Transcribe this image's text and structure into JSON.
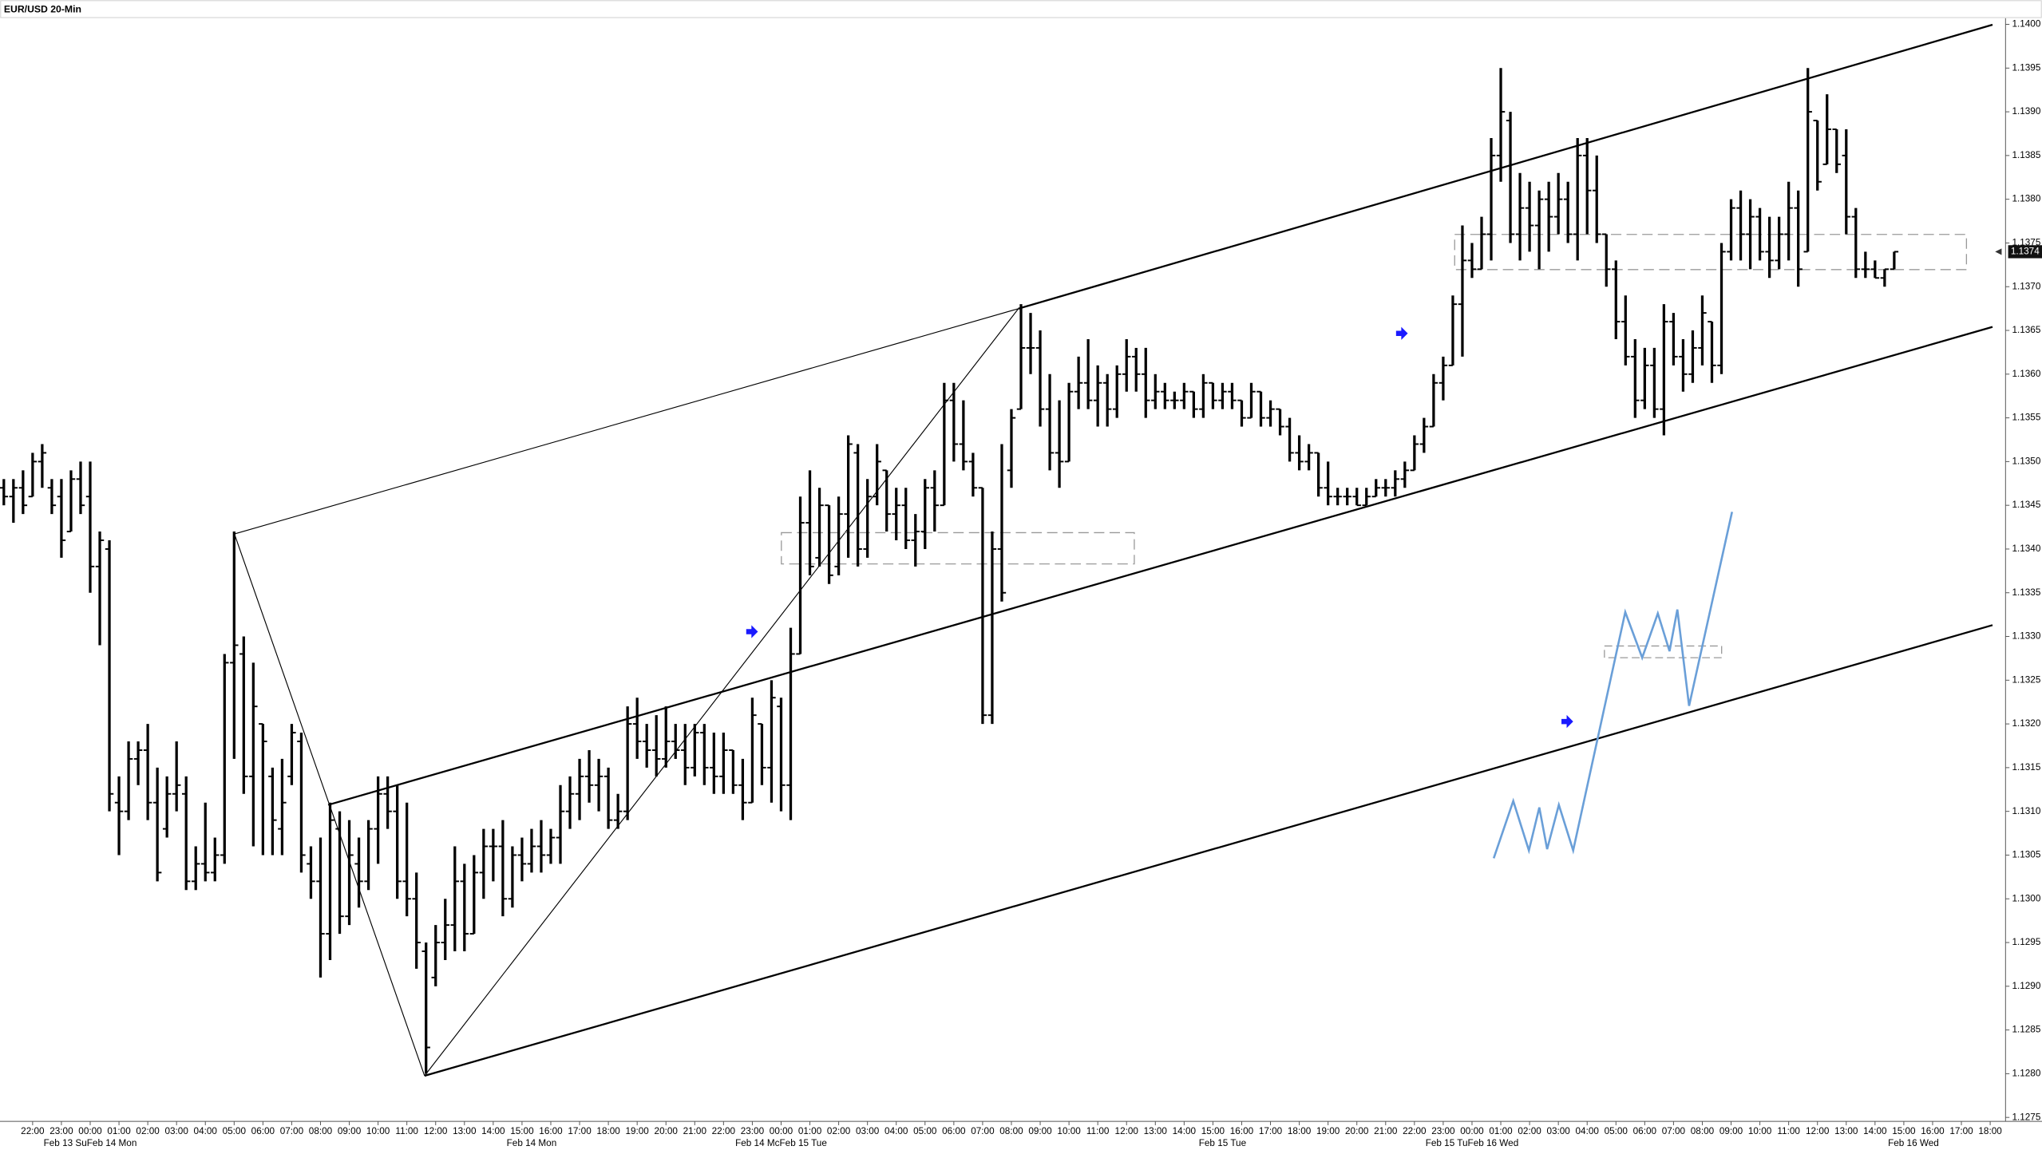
{
  "chart_data": {
    "type": "ohlc",
    "title": "EUR/USD 20-Min",
    "color": "#000000",
    "last_price": 1.1374,
    "ylim": [
      1.12747,
      1.14007
    ],
    "yticks": [
      1.1275,
      {
        "value": 1.128,
        "label": "1.1280"
      },
      1.1285,
      {
        "value": 1.129,
        "label": "1.1290"
      },
      1.1295,
      {
        "value": 1.13,
        "label": "1.1300"
      },
      1.1305,
      {
        "value": 1.131,
        "label": "1.1310"
      },
      1.1315,
      {
        "value": 1.132,
        "label": "1.1320"
      },
      1.1325,
      {
        "value": 1.133,
        "label": "1.1330"
      },
      1.1335,
      {
        "value": 1.134,
        "label": "1.1340"
      },
      1.1345,
      {
        "value": 1.135,
        "label": "1.1350"
      },
      1.1355,
      {
        "value": 1.136,
        "label": "1.1360"
      },
      1.1365,
      {
        "value": 1.137,
        "label": "1.1370"
      },
      1.1375,
      {
        "value": 1.138,
        "label": "1.1380"
      },
      1.1385,
      {
        "value": 1.139,
        "label": "1.1390"
      },
      1.1395,
      {
        "value": 1.14,
        "label": "1.1400"
      }
    ],
    "xlim": [
      -0.4,
      208.6
    ],
    "xticks": [
      {
        "value": 3,
        "label": "22:00"
      },
      {
        "value": 6,
        "label": "23:00"
      },
      {
        "value": 9,
        "label": "00:00"
      },
      {
        "value": 12,
        "label": "01:00"
      },
      {
        "value": 15,
        "label": "02:00"
      },
      {
        "value": 18,
        "label": "03:00"
      },
      {
        "value": 21,
        "label": "04:00"
      },
      {
        "value": 24,
        "label": "05:00"
      },
      {
        "value": 27,
        "label": "06:00"
      },
      {
        "value": 30,
        "label": "07:00"
      },
      {
        "value": 33,
        "label": "08:00"
      },
      {
        "value": 36,
        "label": "09:00"
      },
      {
        "value": 39,
        "label": "10:00"
      },
      {
        "value": 42,
        "label": "11:00"
      },
      {
        "value": 45,
        "label": "12:00"
      },
      {
        "value": 48,
        "label": "13:00"
      },
      {
        "value": 51,
        "label": "14:00"
      },
      {
        "value": 54,
        "label": "15:00"
      },
      {
        "value": 57,
        "label": "16:00"
      },
      {
        "value": 60,
        "label": "17:00"
      },
      {
        "value": 63,
        "label": "18:00"
      },
      {
        "value": 66,
        "label": "19:00"
      },
      {
        "value": 69,
        "label": "20:00"
      },
      {
        "value": 72,
        "label": "21:00"
      },
      {
        "value": 75,
        "label": "22:00"
      },
      {
        "value": 78,
        "label": "23:00"
      },
      {
        "value": 81,
        "label": "00:00"
      },
      {
        "value": 84,
        "label": "01:00"
      },
      {
        "value": 87,
        "label": "02:00"
      },
      {
        "value": 90,
        "label": "03:00"
      },
      {
        "value": 93,
        "label": "04:00"
      },
      {
        "value": 96,
        "label": "05:00"
      },
      {
        "value": 99,
        "label": "06:00"
      },
      {
        "value": 102,
        "label": "07:00"
      },
      {
        "value": 105,
        "label": "08:00"
      },
      {
        "value": 108,
        "label": "09:00"
      },
      {
        "value": 111,
        "label": "10:00"
      },
      {
        "value": 114,
        "label": "11:00"
      },
      {
        "value": 117,
        "label": "12:00"
      },
      {
        "value": 120,
        "label": "13:00"
      },
      {
        "value": 123,
        "label": "14:00"
      },
      {
        "value": 126,
        "label": "15:00"
      },
      {
        "value": 129,
        "label": "16:00"
      },
      {
        "value": 132,
        "label": "17:00"
      },
      {
        "value": 135,
        "label": "18:00"
      },
      {
        "value": 138,
        "label": "19:00"
      },
      {
        "value": 141,
        "label": "20:00"
      },
      {
        "value": 144,
        "label": "21:00"
      },
      {
        "value": 147,
        "label": "22:00"
      },
      {
        "value": 150,
        "label": "23:00"
      },
      {
        "value": 153,
        "label": "00:00"
      },
      {
        "value": 156,
        "label": "01:00"
      },
      {
        "value": 159,
        "label": "02:00"
      },
      {
        "value": 162,
        "label": "03:00"
      },
      {
        "value": 165,
        "label": "04:00"
      },
      {
        "value": 168,
        "label": "05:00"
      },
      {
        "value": 171,
        "label": "06:00"
      },
      {
        "value": 174,
        "label": "07:00"
      },
      {
        "value": 177,
        "label": "08:00"
      },
      {
        "value": 180,
        "label": "09:00"
      },
      {
        "value": 183,
        "label": "10:00"
      },
      {
        "value": 186,
        "label": "11:00"
      },
      {
        "value": 189,
        "label": "12:00"
      },
      {
        "value": 192,
        "label": "13:00"
      },
      {
        "value": 195,
        "label": "14:00"
      },
      {
        "value": 198,
        "label": "15:00"
      },
      {
        "value": 201,
        "label": "16:00"
      },
      {
        "value": 204,
        "label": "17:00"
      },
      {
        "value": 207,
        "label": "18:00"
      }
    ],
    "date_labels": [
      {
        "value": 9,
        "label": "Feb 13 SuFeb 14 Mon"
      },
      {
        "value": 55,
        "label": "Feb 14 Mon"
      },
      {
        "value": 81,
        "label": "Feb 14 McFeb 15 Tue"
      },
      {
        "value": 127,
        "label": "Feb 15 Tue"
      },
      {
        "value": 153,
        "label": "Feb 15 TuFeb 16 Wed"
      },
      {
        "value": 199,
        "label": "Feb 16 Wed"
      }
    ],
    "open": [
      1.1347,
      1.1346,
      1.1347,
      1.1346,
      1.135,
      1.1347,
      1.1346,
      1.1342,
      1.1348,
      1.1346,
      1.1338,
      1.134,
      1.1311,
      1.131,
      1.1316,
      1.1317,
      1.1311,
      1.1308,
      1.1312,
      1.1312,
      1.1302,
      1.1304,
      1.1303,
      1.1305,
      1.1327,
      1.1328,
      1.1314,
      1.132,
      1.1314,
      1.1308,
      1.1314,
      1.1318,
      1.1304,
      1.1302,
      1.1296,
      1.1308,
      1.1298,
      1.1304,
      1.1302,
      1.1308,
      1.1312,
      1.131,
      1.1302,
      1.13,
      1.1294,
      1.1291,
      1.1295,
      1.1297,
      1.1302,
      1.1296,
      1.1303,
      1.1306,
      1.1306,
      1.13,
      1.1305,
      1.1304,
      1.1306,
      1.1305,
      1.1307,
      1.131,
      1.1312,
      1.1314,
      1.1313,
      1.1314,
      1.1309,
      1.131,
      1.132,
      1.1318,
      1.1317,
      1.1316,
      1.1318,
      1.1317,
      1.1315,
      1.1319,
      1.1315,
      1.1314,
      1.1317,
      1.1313,
      1.1311,
      1.132,
      1.1315,
      1.1322,
      1.1313,
      1.1328,
      1.1343,
      1.1339,
      1.1345,
      1.1338,
      1.1344,
      1.1351,
      1.134,
      1.1346,
      1.1349,
      1.1344,
      1.1345,
      1.1341,
      1.1342,
      1.1347,
      1.1345,
      1.1357,
      1.1352,
      1.135,
      1.1347,
      1.1321,
      1.134,
      1.1349,
      1.1356,
      1.1363,
      1.1363,
      1.1356,
      1.1351,
      1.135,
      1.1358,
      1.1359,
      1.1357,
      1.1359,
      1.1356,
      1.136,
      1.1362,
      1.136,
      1.1357,
      1.1358,
      1.1357,
      1.1357,
      1.1358,
      1.1356,
      1.1359,
      1.1357,
      1.1358,
      1.1357,
      1.1355,
      1.1358,
      1.1355,
      1.1356,
      1.1354,
      1.1351,
      1.135,
      1.1351,
      1.1347,
      1.1346,
      1.1346,
      1.1346,
      1.1345,
      1.1346,
      1.1347,
      1.1347,
      1.1348,
      1.1349,
      1.1352,
      1.1354,
      1.1359,
      1.1361,
      1.1368,
      1.1373,
      1.1372,
      1.1376,
      1.1385,
      1.1389,
      1.1376,
      1.1379,
      1.1377,
      1.138,
      1.1378,
      1.138,
      1.1376,
      1.1385,
      1.1381,
      1.1376,
      1.1372,
      1.1366,
      1.1362,
      1.1357,
      1.1361,
      1.1356,
      1.1366,
      1.1362,
      1.136,
      1.1363,
      1.1366,
      1.1361,
      1.1374,
      1.1379,
      1.1376,
      1.1378,
      1.1374,
      1.1373,
      1.1376,
      1.1379,
      1.1374,
      1.1389,
      1.1384,
      1.1388,
      1.1385,
      1.1378,
      1.1372,
      1.1372,
      1.1371,
      1.1372
    ],
    "high": [
      1.1348,
      1.1348,
      1.1349,
      1.1351,
      1.1352,
      1.1348,
      1.1348,
      1.1349,
      1.135,
      1.135,
      1.1342,
      1.1341,
      1.1314,
      1.1318,
      1.1318,
      1.132,
      1.1315,
      1.1314,
      1.1318,
      1.1314,
      1.1306,
      1.1311,
      1.1307,
      1.1328,
      1.1342,
      1.133,
      1.1327,
      1.132,
      1.1315,
      1.1316,
      1.132,
      1.1319,
      1.1306,
      1.1307,
      1.1311,
      1.131,
      1.1309,
      1.1307,
      1.1309,
      1.1314,
      1.1314,
      1.1313,
      1.1311,
      1.1303,
      1.1295,
      1.1297,
      1.13,
      1.1306,
      1.1304,
      1.1305,
      1.1308,
      1.1308,
      1.1309,
      1.1306,
      1.1307,
      1.1308,
      1.1309,
      1.1308,
      1.1313,
      1.1314,
      1.1316,
      1.1317,
      1.1316,
      1.1315,
      1.1312,
      1.1322,
      1.1323,
      1.132,
      1.1321,
      1.1322,
      1.132,
      1.132,
      1.132,
      1.132,
      1.1319,
      1.1319,
      1.1317,
      1.1316,
      1.1323,
      1.132,
      1.1325,
      1.1323,
      1.1331,
      1.1346,
      1.1349,
      1.1347,
      1.1345,
      1.1346,
      1.1353,
      1.1352,
      1.1348,
      1.1352,
      1.1349,
      1.1347,
      1.1347,
      1.1344,
      1.1348,
      1.1349,
      1.1359,
      1.1359,
      1.1357,
      1.1351,
      1.1347,
      1.1342,
      1.1352,
      1.1356,
      1.1368,
      1.1367,
      1.1365,
      1.136,
      1.1357,
      1.1359,
      1.1362,
      1.1364,
      1.1361,
      1.136,
      1.1361,
      1.1364,
      1.1363,
      1.1363,
      1.136,
      1.1359,
      1.1358,
      1.1359,
      1.1358,
      1.136,
      1.1359,
      1.1359,
      1.1359,
      1.1357,
      1.1359,
      1.1358,
      1.1357,
      1.1356,
      1.1355,
      1.1353,
      1.1352,
      1.1351,
      1.135,
      1.1347,
      1.1347,
      1.1347,
      1.1347,
      1.1348,
      1.1348,
      1.1349,
      1.135,
      1.1353,
      1.1355,
      1.136,
      1.1362,
      1.1369,
      1.1377,
      1.1375,
      1.1378,
      1.1387,
      1.1395,
      1.139,
      1.1383,
      1.1382,
      1.1381,
      1.1382,
      1.1383,
      1.1382,
      1.1387,
      1.1387,
      1.1385,
      1.1376,
      1.1373,
      1.1369,
      1.1364,
      1.1363,
      1.1363,
      1.1368,
      1.1367,
      1.1364,
      1.1365,
      1.1369,
      1.1366,
      1.1375,
      1.138,
      1.1381,
      1.138,
      1.1379,
      1.1378,
      1.1378,
      1.1382,
      1.1381,
      1.1395,
      1.1389,
      1.1392,
      1.1388,
      1.1388,
      1.1379,
      1.1374,
      1.1373,
      1.1372,
      1.1374
    ],
    "low": [
      1.1345,
      1.1343,
      1.1344,
      1.1346,
      1.1347,
      1.1344,
      1.1339,
      1.1342,
      1.1344,
      1.1335,
      1.1329,
      1.131,
      1.1305,
      1.1309,
      1.1313,
      1.1309,
      1.1302,
      1.1307,
      1.131,
      1.1301,
      1.1301,
      1.1302,
      1.1302,
      1.1304,
      1.1316,
      1.1312,
      1.1306,
      1.1305,
      1.1305,
      1.1305,
      1.1313,
      1.1303,
      1.13,
      1.1291,
      1.1293,
      1.1296,
      1.1297,
      1.1299,
      1.1301,
      1.1304,
      1.1308,
      1.13,
      1.1298,
      1.1292,
      1.128,
      1.129,
      1.1293,
      1.1294,
      1.1294,
      1.1296,
      1.13,
      1.1302,
      1.1298,
      1.1299,
      1.1302,
      1.1303,
      1.1303,
      1.1304,
      1.1304,
      1.1308,
      1.1309,
      1.1311,
      1.131,
      1.1308,
      1.1308,
      1.1309,
      1.1316,
      1.1315,
      1.1314,
      1.1315,
      1.1316,
      1.1313,
      1.1314,
      1.1313,
      1.1312,
      1.1312,
      1.1312,
      1.1309,
      1.1311,
      1.1313,
      1.1311,
      1.131,
      1.1309,
      1.1328,
      1.1337,
      1.1338,
      1.1336,
      1.1337,
      1.1339,
      1.1338,
      1.1339,
      1.1345,
      1.1342,
      1.1341,
      1.134,
      1.1338,
      1.134,
      1.1342,
      1.1345,
      1.135,
      1.1349,
      1.1346,
      1.132,
      1.132,
      1.1334,
      1.1347,
      1.1356,
      1.136,
      1.1354,
      1.1349,
      1.1347,
      1.135,
      1.1356,
      1.1356,
      1.1354,
      1.1354,
      1.1355,
      1.1358,
      1.1358,
      1.1355,
      1.1356,
      1.1356,
      1.1356,
      1.1356,
      1.1355,
      1.1355,
      1.1356,
      1.1356,
      1.1356,
      1.1354,
      1.1355,
      1.1354,
      1.1354,
      1.1353,
      1.135,
      1.1349,
      1.1349,
      1.1346,
      1.1345,
      1.1345,
      1.1345,
      1.1345,
      1.1345,
      1.1346,
      1.1346,
      1.1346,
      1.1347,
      1.1349,
      1.1351,
      1.1354,
      1.1357,
      1.1361,
      1.1362,
      1.1371,
      1.1372,
      1.1373,
      1.1382,
      1.1375,
      1.1373,
      1.1374,
      1.1372,
      1.1374,
      1.1376,
      1.1375,
      1.1373,
      1.1376,
      1.1375,
      1.137,
      1.1364,
      1.1361,
      1.1355,
      1.1356,
      1.1355,
      1.1353,
      1.1361,
      1.1358,
      1.1359,
      1.1361,
      1.1359,
      1.136,
      1.1373,
      1.1373,
      1.1372,
      1.1373,
      1.1371,
      1.1372,
      1.1373,
      1.137,
      1.1374,
      1.1381,
      1.1384,
      1.1383,
      1.1376,
      1.1371,
      1.1371,
      1.1371,
      1.137,
      1.1372
    ],
    "close": [
      1.1346,
      1.1347,
      1.1345,
      1.135,
      1.1351,
      1.1345,
      1.1341,
      1.1348,
      1.1345,
      1.1338,
      1.1341,
      1.1312,
      1.131,
      1.1316,
      1.1317,
      1.1311,
      1.1303,
      1.1312,
      1.1313,
      1.1302,
      1.1304,
      1.1303,
      1.1305,
      1.1327,
      1.1329,
      1.1314,
      1.1322,
      1.1318,
      1.1309,
      1.1311,
      1.1319,
      1.1305,
      1.1302,
      1.1296,
      1.1309,
      1.1298,
      1.1305,
      1.1302,
      1.1308,
      1.1312,
      1.131,
      1.1302,
      1.13,
      1.1295,
      1.1283,
      1.1295,
      1.1297,
      1.1302,
      1.1296,
      1.1303,
      1.1306,
      1.1306,
      1.13,
      1.1305,
      1.1304,
      1.1306,
      1.1305,
      1.1307,
      1.131,
      1.1312,
      1.1314,
      1.1313,
      1.1314,
      1.1309,
      1.131,
      1.132,
      1.1318,
      1.1317,
      1.1316,
      1.1318,
      1.1317,
      1.1315,
      1.1319,
      1.1315,
      1.1314,
      1.1317,
      1.1313,
      1.1311,
      1.1321,
      1.1315,
      1.1323,
      1.1313,
      1.1328,
      1.1343,
      1.1338,
      1.1345,
      1.1337,
      1.1344,
      1.1352,
      1.134,
      1.1346,
      1.135,
      1.1344,
      1.1345,
      1.1341,
      1.1342,
      1.1347,
      1.1345,
      1.1357,
      1.1352,
      1.135,
      1.1347,
      1.1321,
      1.134,
      1.1335,
      1.1355,
      1.1363,
      1.1363,
      1.1356,
      1.1351,
      1.135,
      1.1358,
      1.1359,
      1.1357,
      1.1359,
      1.1356,
      1.136,
      1.1362,
      1.136,
      1.1357,
      1.1358,
      1.1357,
      1.1357,
      1.1358,
      1.1356,
      1.1359,
      1.1357,
      1.1358,
      1.1357,
      1.1355,
      1.1358,
      1.1355,
      1.1356,
      1.1354,
      1.1351,
      1.135,
      1.1351,
      1.1347,
      1.1346,
      1.1346,
      1.1346,
      1.1345,
      1.1346,
      1.1347,
      1.1347,
      1.1348,
      1.1349,
      1.1352,
      1.1354,
      1.1359,
      1.1361,
      1.1368,
      1.1373,
      1.1372,
      1.1376,
      1.1385,
      1.139,
      1.1376,
      1.1379,
      1.1377,
      1.138,
      1.1378,
      1.138,
      1.1376,
      1.1385,
      1.1381,
      1.1376,
      1.1372,
      1.1366,
      1.1362,
      1.1357,
      1.1361,
      1.1356,
      1.1366,
      1.1362,
      1.136,
      1.1363,
      1.1367,
      1.1361,
      1.1374,
      1.1379,
      1.1376,
      1.1378,
      1.1374,
      1.1373,
      1.1376,
      1.1379,
      1.1372,
      1.139,
      1.1382,
      1.1388,
      1.1384,
      1.1378,
      1.1372,
      1.1372,
      1.1371,
      1.1372,
      1.1374
    ]
  }
}
